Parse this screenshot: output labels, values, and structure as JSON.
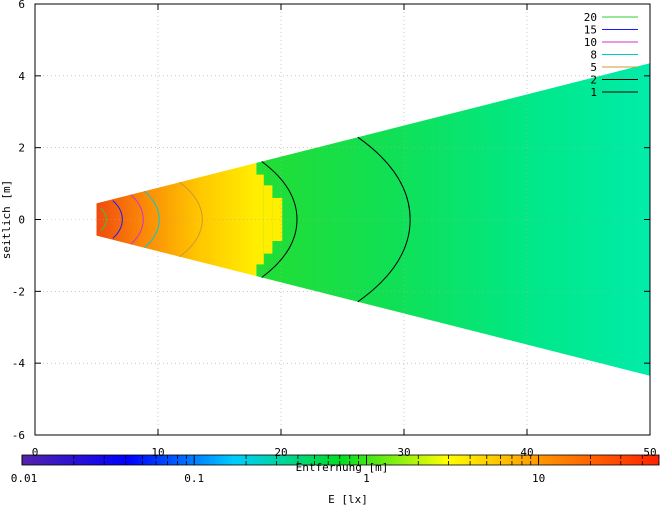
{
  "chart_data": {
    "type": "heatmap",
    "title": "",
    "xlabel": "Entfernung [m]",
    "ylabel": "seitlich [m]",
    "xlim": [
      0,
      50
    ],
    "ylim": [
      -6,
      6
    ],
    "x_ticks": [
      0,
      10,
      20,
      30,
      40,
      50
    ],
    "y_ticks": [
      -6,
      -4,
      -2,
      0,
      2,
      4,
      6
    ],
    "grid": true,
    "legend_position": "top-right",
    "contour_levels": [
      {
        "label": "20",
        "color": "#33cc33"
      },
      {
        "label": "15",
        "color": "#1a1aff"
      },
      {
        "label": "10",
        "color": "#cc33cc"
      },
      {
        "label": "8",
        "color": "#00cccc"
      },
      {
        "label": "5",
        "color": "#cc9933"
      },
      {
        "label": "2",
        "color": "#000000"
      },
      {
        "label": "1",
        "color": "#000000"
      }
    ],
    "beam": {
      "x_start": 5,
      "x_end": 50,
      "halfwidth_at_start": 0.45,
      "halfwidth_at_end": 4.35
    },
    "color_regions": [
      {
        "x_from": 5,
        "x_to": 18,
        "description": "red-orange to yellow gradient"
      },
      {
        "x_from": 18,
        "x_to": 50,
        "description": "green to cyan gradient"
      }
    ],
    "colorbar": {
      "label": "E [lx]",
      "scale": "log",
      "range": [
        0.01,
        50
      ],
      "tick_labels": [
        "0.01",
        "0.1",
        "1",
        "10"
      ],
      "tick_values": [
        0.01,
        0.1,
        1,
        10
      ],
      "colors": [
        "#5522aa",
        "#0000ff",
        "#00ccff",
        "#00dd22",
        "#ffff00",
        "#ff8800",
        "#ff2200"
      ]
    }
  }
}
